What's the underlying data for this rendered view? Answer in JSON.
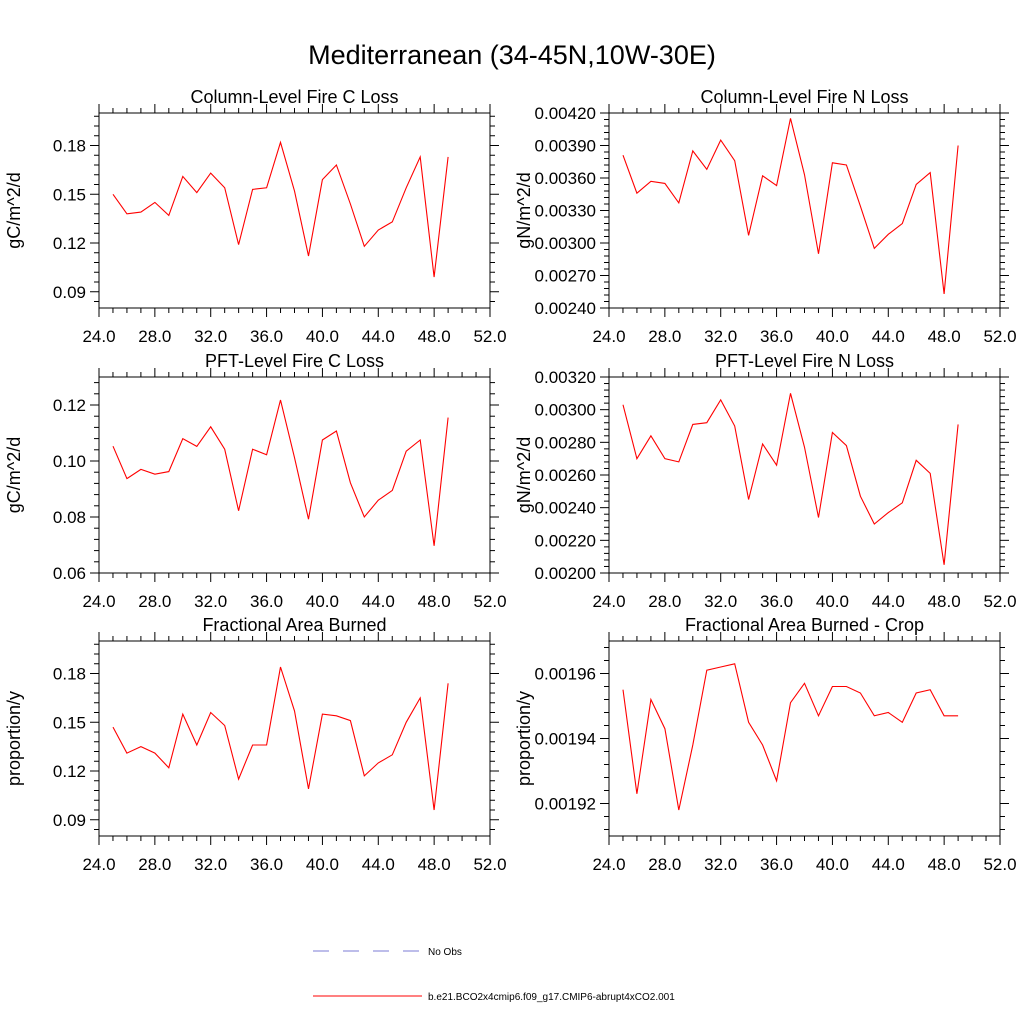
{
  "title": "Mediterranean (34-45N,10W-30E)",
  "legend": {
    "placement": "bottom-center",
    "items": [
      {
        "label": "No Obs",
        "color": "#7b7bd4",
        "style": "dashed"
      },
      {
        "label": "b.e21.BCO2x4cmip6.f09_g17.CMIP6-abrupt4xCO2.001",
        "color": "#ff0000",
        "style": "solid"
      }
    ]
  },
  "chart_data": [
    {
      "type": "line",
      "title": "Column-Level Fire C Loss",
      "ylabel": "gC/m^2/d",
      "xlim": [
        24,
        52
      ],
      "ylim": [
        0.08,
        0.2
      ],
      "xticks": [
        24,
        28,
        32,
        36,
        40,
        44,
        48,
        52
      ],
      "xtick_labels": [
        "24.0",
        "28.0",
        "32.0",
        "36.0",
        "40.0",
        "44.0",
        "48.0",
        "52.0"
      ],
      "yticks": [
        0.09,
        0.12,
        0.15,
        0.18
      ],
      "ytick_labels": [
        "0.09",
        "0.12",
        "0.15",
        "0.18"
      ],
      "x": [
        25,
        26,
        27,
        28,
        29,
        30,
        31,
        32,
        33,
        34,
        35,
        36,
        37,
        38,
        39,
        40,
        41,
        42,
        43,
        44,
        45,
        46,
        47,
        48,
        49
      ],
      "series": [
        {
          "name": "b.e21.BCO2x4cmip6.f09_g17.CMIP6-abrupt4xCO2.001",
          "color": "#ff0000",
          "values": [
            0.15,
            0.138,
            0.139,
            0.145,
            0.137,
            0.161,
            0.151,
            0.163,
            0.154,
            0.119,
            0.153,
            0.154,
            0.182,
            0.152,
            0.112,
            0.159,
            0.168,
            0.144,
            0.118,
            0.128,
            0.133,
            0.154,
            0.173,
            0.099,
            0.173
          ]
        }
      ]
    },
    {
      "type": "line",
      "title": "Column-Level Fire N Loss",
      "ylabel": "gN/m^2/d",
      "xlim": [
        24,
        52
      ],
      "ylim": [
        0.0024,
        0.0042
      ],
      "xticks": [
        24,
        28,
        32,
        36,
        40,
        44,
        48,
        52
      ],
      "xtick_labels": [
        "24.0",
        "28.0",
        "32.0",
        "36.0",
        "40.0",
        "44.0",
        "48.0",
        "52.0"
      ],
      "yticks": [
        0.0024,
        0.0027,
        0.003,
        0.0033,
        0.0036,
        0.0039,
        0.0042
      ],
      "ytick_labels": [
        "0.00240",
        "0.00270",
        "0.00300",
        "0.00330",
        "0.00360",
        "0.00390",
        "0.00420"
      ],
      "x": [
        25,
        26,
        27,
        28,
        29,
        30,
        31,
        32,
        33,
        34,
        35,
        36,
        37,
        38,
        39,
        40,
        41,
        42,
        43,
        44,
        45,
        46,
        47,
        48,
        49
      ],
      "series": [
        {
          "name": "b.e21.BCO2x4cmip6.f09_g17.CMIP6-abrupt4xCO2.001",
          "color": "#ff0000",
          "values": [
            0.00381,
            0.00346,
            0.00357,
            0.00355,
            0.00337,
            0.00385,
            0.00368,
            0.00395,
            0.00376,
            0.00307,
            0.00362,
            0.00353,
            0.00415,
            0.00363,
            0.0029,
            0.00374,
            0.00372,
            0.00334,
            0.00295,
            0.00308,
            0.00318,
            0.00354,
            0.00365,
            0.00253,
            0.0039
          ]
        }
      ]
    },
    {
      "type": "line",
      "title": "PFT-Level Fire C Loss",
      "ylabel": "gC/m^2/d",
      "xlim": [
        24,
        52
      ],
      "ylim": [
        0.06,
        0.13
      ],
      "xticks": [
        24,
        28,
        32,
        36,
        40,
        44,
        48,
        52
      ],
      "xtick_labels": [
        "24.0",
        "28.0",
        "32.0",
        "36.0",
        "40.0",
        "44.0",
        "48.0",
        "52.0"
      ],
      "yticks": [
        0.06,
        0.08,
        0.1,
        0.12
      ],
      "ytick_labels": [
        "0.06",
        "0.08",
        "0.10",
        "0.12"
      ],
      "x": [
        25,
        26,
        27,
        28,
        29,
        30,
        31,
        32,
        33,
        34,
        35,
        36,
        37,
        38,
        39,
        40,
        41,
        42,
        43,
        44,
        45,
        46,
        47,
        48,
        49
      ],
      "series": [
        {
          "name": "b.e21.BCO2x4cmip6.f09_g17.CMIP6-abrupt4xCO2.001",
          "color": "#ff0000",
          "values": [
            0.1053,
            0.0937,
            0.097,
            0.0953,
            0.0962,
            0.108,
            0.1052,
            0.1122,
            0.1042,
            0.0822,
            0.1042,
            0.1022,
            0.1218,
            0.1012,
            0.0792,
            0.1075,
            0.1107,
            0.0922,
            0.08,
            0.086,
            0.0895,
            0.1035,
            0.1075,
            0.0697,
            0.1155
          ]
        }
      ]
    },
    {
      "type": "line",
      "title": "PFT-Level Fire N Loss",
      "ylabel": "gN/m^2/d",
      "xlim": [
        24,
        52
      ],
      "ylim": [
        0.002,
        0.0032
      ],
      "xticks": [
        24,
        28,
        32,
        36,
        40,
        44,
        48,
        52
      ],
      "xtick_labels": [
        "24.0",
        "28.0",
        "32.0",
        "36.0",
        "40.0",
        "44.0",
        "48.0",
        "52.0"
      ],
      "yticks": [
        0.002,
        0.0022,
        0.0024,
        0.0026,
        0.0028,
        0.003,
        0.0032
      ],
      "ytick_labels": [
        "0.00200",
        "0.00220",
        "0.00240",
        "0.00260",
        "0.00280",
        "0.00300",
        "0.00320"
      ],
      "x": [
        25,
        26,
        27,
        28,
        29,
        30,
        31,
        32,
        33,
        34,
        35,
        36,
        37,
        38,
        39,
        40,
        41,
        42,
        43,
        44,
        45,
        46,
        47,
        48,
        49
      ],
      "series": [
        {
          "name": "b.e21.BCO2x4cmip6.f09_g17.CMIP6-abrupt4xCO2.001",
          "color": "#ff0000",
          "values": [
            0.00303,
            0.0027,
            0.00284,
            0.0027,
            0.00268,
            0.00291,
            0.00292,
            0.00306,
            0.0029,
            0.00245,
            0.00279,
            0.00266,
            0.0031,
            0.00277,
            0.00234,
            0.00286,
            0.00278,
            0.00247,
            0.0023,
            0.00237,
            0.00243,
            0.00269,
            0.00261,
            0.00205,
            0.00291
          ]
        }
      ]
    },
    {
      "type": "line",
      "title": "Fractional Area Burned",
      "ylabel": "proportion/y",
      "xlim": [
        24,
        52
      ],
      "ylim": [
        0.08,
        0.2
      ],
      "xticks": [
        24,
        28,
        32,
        36,
        40,
        44,
        48,
        52
      ],
      "xtick_labels": [
        "24.0",
        "28.0",
        "32.0",
        "36.0",
        "40.0",
        "44.0",
        "48.0",
        "52.0"
      ],
      "yticks": [
        0.09,
        0.12,
        0.15,
        0.18
      ],
      "ytick_labels": [
        "0.09",
        "0.12",
        "0.15",
        "0.18"
      ],
      "x": [
        25,
        26,
        27,
        28,
        29,
        30,
        31,
        32,
        33,
        34,
        35,
        36,
        37,
        38,
        39,
        40,
        41,
        42,
        43,
        44,
        45,
        46,
        47,
        48,
        49
      ],
      "series": [
        {
          "name": "b.e21.BCO2x4cmip6.f09_g17.CMIP6-abrupt4xCO2.001",
          "color": "#ff0000",
          "values": [
            0.147,
            0.131,
            0.135,
            0.131,
            0.122,
            0.155,
            0.136,
            0.156,
            0.148,
            0.115,
            0.136,
            0.136,
            0.184,
            0.157,
            0.109,
            0.155,
            0.154,
            0.151,
            0.117,
            0.125,
            0.13,
            0.15,
            0.165,
            0.096,
            0.174
          ]
        }
      ]
    },
    {
      "type": "line",
      "title": "Fractional Area Burned - Crop",
      "ylabel": "proportion/y",
      "xlim": [
        24,
        52
      ],
      "ylim": [
        0.00191,
        0.00197
      ],
      "xticks": [
        24,
        28,
        32,
        36,
        40,
        44,
        48,
        52
      ],
      "xtick_labels": [
        "24.0",
        "28.0",
        "32.0",
        "36.0",
        "40.0",
        "44.0",
        "48.0",
        "52.0"
      ],
      "yticks": [
        0.00192,
        0.00194,
        0.00196
      ],
      "ytick_labels": [
        "0.00192",
        "0.00194",
        "0.00196"
      ],
      "x": [
        25,
        26,
        27,
        28,
        29,
        30,
        31,
        32,
        33,
        34,
        35,
        36,
        37,
        38,
        39,
        40,
        41,
        42,
        43,
        44,
        45,
        46,
        47,
        48,
        49
      ],
      "series": [
        {
          "name": "b.e21.BCO2x4cmip6.f09_g17.CMIP6-abrupt4xCO2.001",
          "color": "#ff0000",
          "values": [
            0.001955,
            0.001923,
            0.001952,
            0.001943,
            0.001918,
            0.001938,
            0.001961,
            0.001962,
            0.001963,
            0.001945,
            0.001938,
            0.001927,
            0.001951,
            0.001957,
            0.001947,
            0.001956,
            0.001956,
            0.001954,
            0.001947,
            0.001948,
            0.001945,
            0.001954,
            0.001955,
            0.001947,
            0.001947
          ]
        }
      ]
    }
  ]
}
